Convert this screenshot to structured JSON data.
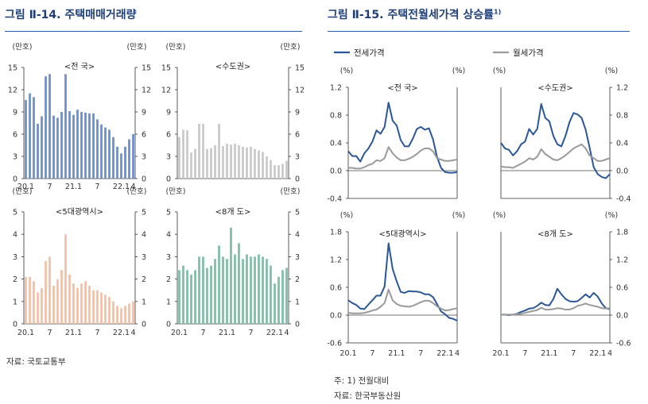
{
  "left_figure": {
    "title": "그림 Ⅱ-14. 주택매매거래량",
    "source": "자료: 국토교통부"
  },
  "right_figure": {
    "title": "그림 Ⅱ-15. 주택전월세가격 상승률",
    "title_sup": "1)",
    "legend": [
      "전세가격",
      "월세가격"
    ],
    "note": "주: 1) 전월대비",
    "source": "자료: 한국부동산원"
  },
  "chart_data": [
    {
      "type": "bar",
      "title": "<전 국>",
      "unit_left": "(만호)",
      "unit_right": "(만호)",
      "ylim": [
        0,
        15
      ],
      "yticks": [
        0,
        3,
        6,
        9,
        12,
        15
      ],
      "color": "#6f8fc7",
      "xticklabels": [
        "20.1",
        "7",
        "21.1",
        "7",
        "22.1",
        "4"
      ],
      "x": [
        "20.1",
        "20.2",
        "20.3",
        "20.4",
        "20.5",
        "20.6",
        "20.7",
        "20.8",
        "20.9",
        "20.10",
        "20.11",
        "20.12",
        "21.1",
        "21.2",
        "21.3",
        "21.4",
        "21.5",
        "21.6",
        "21.7",
        "21.8",
        "21.9",
        "21.10",
        "21.11",
        "21.12",
        "22.1",
        "22.2",
        "22.3",
        "22.4"
      ],
      "values": [
        10.6,
        11.5,
        11.0,
        7.4,
        8.4,
        13.8,
        14.1,
        8.5,
        8.2,
        9.0,
        14.1,
        9.1,
        8.6,
        9.3,
        9.0,
        8.9,
        8.8,
        8.8,
        8.0,
        7.3,
        6.9,
        6.6,
        5.6,
        4.3,
        3.4,
        4.3,
        5.3,
        6.0
      ]
    },
    {
      "type": "bar",
      "title": "<수도권>",
      "unit_left": "(만호)",
      "unit_right": "(만호)",
      "ylim": [
        0,
        15
      ],
      "yticks": [
        0,
        3,
        6,
        9,
        12,
        15
      ],
      "color": "#c9c9c9",
      "xticklabels": [],
      "x": [
        "20.1",
        "20.2",
        "20.3",
        "20.4",
        "20.5",
        "20.6",
        "20.7",
        "20.8",
        "20.9",
        "20.10",
        "20.11",
        "20.12",
        "21.1",
        "21.2",
        "21.3",
        "21.4",
        "21.5",
        "21.6",
        "21.7",
        "21.8",
        "21.9",
        "21.10",
        "21.11",
        "21.12",
        "22.1",
        "22.2",
        "22.3",
        "22.4"
      ],
      "values": [
        5.6,
        6.6,
        6.5,
        3.5,
        4.0,
        7.4,
        7.4,
        4.0,
        4.1,
        4.5,
        7.4,
        4.4,
        4.7,
        4.6,
        4.7,
        4.5,
        4.3,
        4.2,
        4.3,
        4.0,
        3.8,
        3.6,
        3.0,
        2.5,
        1.8,
        1.8,
        2.0,
        2.4
      ]
    },
    {
      "type": "bar",
      "title": "<5대광역시>",
      "unit_left": "(만호)",
      "unit_right": "(만호)",
      "ylim": [
        0,
        5
      ],
      "yticks": [
        0,
        1,
        2,
        3,
        4,
        5
      ],
      "color": "#f2c0a6",
      "xticklabels": [
        "20.1",
        "7",
        "21.1",
        "7",
        "22.1",
        "4"
      ],
      "x": [
        "20.1",
        "20.2",
        "20.3",
        "20.4",
        "20.5",
        "20.6",
        "20.7",
        "20.8",
        "20.9",
        "20.10",
        "20.11",
        "20.12",
        "21.1",
        "21.2",
        "21.3",
        "21.4",
        "21.5",
        "21.6",
        "21.7",
        "21.8",
        "21.9",
        "21.10",
        "21.11",
        "21.12",
        "22.1",
        "22.2",
        "22.3",
        "22.4"
      ],
      "values": [
        2.1,
        2.1,
        1.9,
        1.4,
        1.6,
        2.8,
        3.0,
        1.7,
        2.0,
        2.4,
        4.0,
        2.2,
        1.8,
        1.6,
        1.8,
        1.9,
        1.7,
        1.5,
        1.5,
        1.4,
        1.3,
        1.2,
        1.0,
        0.8,
        0.7,
        0.8,
        0.9,
        1.0
      ]
    },
    {
      "type": "bar",
      "title": "<8개 도>",
      "unit_left": "(만호)",
      "unit_right": "(만호)",
      "ylim": [
        0,
        5
      ],
      "yticks": [
        0,
        1,
        2,
        3,
        4,
        5
      ],
      "color": "#7fbfa8",
      "xticklabels": [
        "20.1",
        "7",
        "21.1",
        "7",
        "22.1",
        "4"
      ],
      "x": [
        "20.1",
        "20.2",
        "20.3",
        "20.4",
        "20.5",
        "20.6",
        "20.7",
        "20.8",
        "20.9",
        "20.10",
        "20.11",
        "20.12",
        "21.1",
        "21.2",
        "21.3",
        "21.4",
        "21.5",
        "21.6",
        "21.7",
        "21.8",
        "21.9",
        "21.10",
        "21.11",
        "21.12",
        "22.1",
        "22.2",
        "22.3",
        "22.4"
      ],
      "values": [
        2.4,
        2.6,
        2.4,
        2.2,
        2.4,
        3.0,
        3.0,
        2.5,
        2.6,
        2.9,
        3.5,
        3.0,
        2.9,
        4.3,
        3.1,
        3.6,
        2.9,
        3.1,
        3.0,
        3.0,
        3.1,
        3.0,
        2.9,
        2.6,
        1.8,
        2.1,
        2.4,
        2.5
      ]
    },
    {
      "type": "line",
      "title": "<전 국>",
      "unit_left": "(%)",
      "unit_right": "(%)",
      "ylim": [
        -0.4,
        1.2
      ],
      "yticks": [
        -0.4,
        0.0,
        0.4,
        0.8,
        1.2
      ],
      "ytick_side": "left",
      "xticklabels": [],
      "x": [
        "20.1",
        "20.2",
        "20.3",
        "20.4",
        "20.5",
        "20.6",
        "20.7",
        "20.8",
        "20.9",
        "20.10",
        "20.11",
        "20.12",
        "21.1",
        "21.2",
        "21.3",
        "21.4",
        "21.5",
        "21.6",
        "21.7",
        "21.8",
        "21.9",
        "21.10",
        "21.11",
        "21.12",
        "22.1",
        "22.2",
        "22.3",
        "22.4"
      ],
      "series": [
        {
          "name": "전세가격",
          "color": "#2b5797",
          "values": [
            0.28,
            0.21,
            0.21,
            0.13,
            0.25,
            0.32,
            0.42,
            0.58,
            0.53,
            0.63,
            0.98,
            0.72,
            0.65,
            0.44,
            0.35,
            0.35,
            0.46,
            0.6,
            0.63,
            0.59,
            0.61,
            0.45,
            0.2,
            0.04,
            -0.02,
            -0.03,
            -0.03,
            -0.02
          ]
        },
        {
          "name": "월세가격",
          "color": "#9a9a9a",
          "values": [
            0.04,
            0.04,
            0.03,
            0.03,
            0.05,
            0.08,
            0.1,
            0.15,
            0.14,
            0.18,
            0.34,
            0.25,
            0.19,
            0.15,
            0.15,
            0.17,
            0.2,
            0.24,
            0.29,
            0.32,
            0.32,
            0.28,
            0.18,
            0.16,
            0.14,
            0.14,
            0.15,
            0.16
          ]
        }
      ]
    },
    {
      "type": "line",
      "title": "<수도권>",
      "unit_left": "(%)",
      "unit_right": "(%)",
      "ylim": [
        -0.4,
        1.2
      ],
      "yticks": [
        -0.4,
        0.0,
        0.4,
        0.8,
        1.2
      ],
      "ytick_side": "right",
      "xticklabels": [],
      "x": [
        "20.1",
        "20.2",
        "20.3",
        "20.4",
        "20.5",
        "20.6",
        "20.7",
        "20.8",
        "20.9",
        "20.10",
        "20.11",
        "20.12",
        "21.1",
        "21.2",
        "21.3",
        "21.4",
        "21.5",
        "21.6",
        "21.7",
        "21.8",
        "21.9",
        "21.10",
        "21.11",
        "21.12",
        "22.1",
        "22.2",
        "22.3",
        "22.4"
      ],
      "series": [
        {
          "name": "전세가격",
          "color": "#2b5797",
          "values": [
            0.4,
            0.32,
            0.3,
            0.22,
            0.28,
            0.38,
            0.42,
            0.6,
            0.52,
            0.6,
            0.96,
            0.76,
            0.71,
            0.5,
            0.38,
            0.35,
            0.5,
            0.7,
            0.83,
            0.81,
            0.76,
            0.59,
            0.33,
            0.05,
            -0.05,
            -0.09,
            -0.11,
            -0.05
          ]
        },
        {
          "name": "월세가격",
          "color": "#9a9a9a",
          "values": [
            0.06,
            0.05,
            0.05,
            0.04,
            0.07,
            0.1,
            0.13,
            0.18,
            0.16,
            0.2,
            0.31,
            0.24,
            0.2,
            0.16,
            0.15,
            0.18,
            0.22,
            0.27,
            0.32,
            0.35,
            0.38,
            0.32,
            0.22,
            0.18,
            0.14,
            0.14,
            0.16,
            0.18
          ]
        }
      ]
    },
    {
      "type": "line",
      "title": "<5대광역시>",
      "unit_left": "(%)",
      "unit_right": "(%)",
      "ylim": [
        -0.6,
        1.8
      ],
      "yticks": [
        -0.6,
        0.0,
        0.6,
        1.2,
        1.8
      ],
      "ytick_side": "left",
      "xticklabels": [
        "20.1",
        "7",
        "21.1",
        "7",
        "22.1",
        "4"
      ],
      "x": [
        "20.1",
        "20.2",
        "20.3",
        "20.4",
        "20.5",
        "20.6",
        "20.7",
        "20.8",
        "20.9",
        "20.10",
        "20.11",
        "20.12",
        "21.1",
        "21.2",
        "21.3",
        "21.4",
        "21.5",
        "21.6",
        "21.7",
        "21.8",
        "21.9",
        "21.10",
        "21.11",
        "21.12",
        "22.1",
        "22.2",
        "22.3",
        "22.4"
      ],
      "series": [
        {
          "name": "전세가격",
          "color": "#2b5797",
          "values": [
            0.32,
            0.26,
            0.22,
            0.14,
            0.13,
            0.23,
            0.32,
            0.42,
            0.42,
            0.62,
            1.55,
            1.0,
            0.73,
            0.5,
            0.48,
            0.52,
            0.51,
            0.51,
            0.49,
            0.45,
            0.45,
            0.39,
            0.24,
            0.08,
            0.02,
            -0.06,
            -0.08,
            -0.12
          ]
        },
        {
          "name": "월세가격",
          "color": "#9a9a9a",
          "values": [
            0.05,
            0.04,
            0.04,
            0.04,
            0.05,
            0.07,
            0.1,
            0.12,
            0.18,
            0.26,
            0.55,
            0.32,
            0.24,
            0.2,
            0.19,
            0.18,
            0.2,
            0.24,
            0.28,
            0.31,
            0.31,
            0.26,
            0.19,
            0.14,
            0.1,
            0.11,
            0.13,
            0.15
          ]
        }
      ]
    },
    {
      "type": "line",
      "title": "<8개 도>",
      "unit_left": "(%)",
      "unit_right": "(%)",
      "ylim": [
        -0.6,
        1.8
      ],
      "yticks": [
        -0.6,
        0.0,
        0.6,
        1.2,
        1.8
      ],
      "ytick_side": "right",
      "xticklabels": [
        "20.1",
        "7",
        "21.1",
        "7",
        "22.1",
        "4"
      ],
      "x": [
        "20.1",
        "20.2",
        "20.3",
        "20.4",
        "20.5",
        "20.6",
        "20.7",
        "20.8",
        "20.9",
        "20.10",
        "20.11",
        "20.12",
        "21.1",
        "21.2",
        "21.3",
        "21.4",
        "21.5",
        "21.6",
        "21.7",
        "21.8",
        "21.9",
        "21.10",
        "21.11",
        "21.12",
        "22.1",
        "22.2",
        "22.3",
        "22.4"
      ],
      "series": [
        {
          "name": "전세가격",
          "color": "#2b5797",
          "values": [
            0.01,
            0.01,
            0.0,
            0.01,
            0.03,
            0.07,
            0.1,
            0.14,
            0.15,
            0.2,
            0.27,
            0.22,
            0.21,
            0.35,
            0.57,
            0.45,
            0.35,
            0.3,
            0.29,
            0.3,
            0.37,
            0.45,
            0.38,
            0.48,
            0.4,
            0.25,
            0.15,
            0.13
          ]
        },
        {
          "name": "월세가격",
          "color": "#9a9a9a",
          "values": [
            0.01,
            0.01,
            0.01,
            0.01,
            0.02,
            0.03,
            0.05,
            0.07,
            0.09,
            0.11,
            0.16,
            0.12,
            0.12,
            0.13,
            0.15,
            0.14,
            0.12,
            0.12,
            0.15,
            0.2,
            0.22,
            0.25,
            0.22,
            0.2,
            0.18,
            0.15,
            0.14,
            0.15
          ]
        }
      ]
    }
  ]
}
